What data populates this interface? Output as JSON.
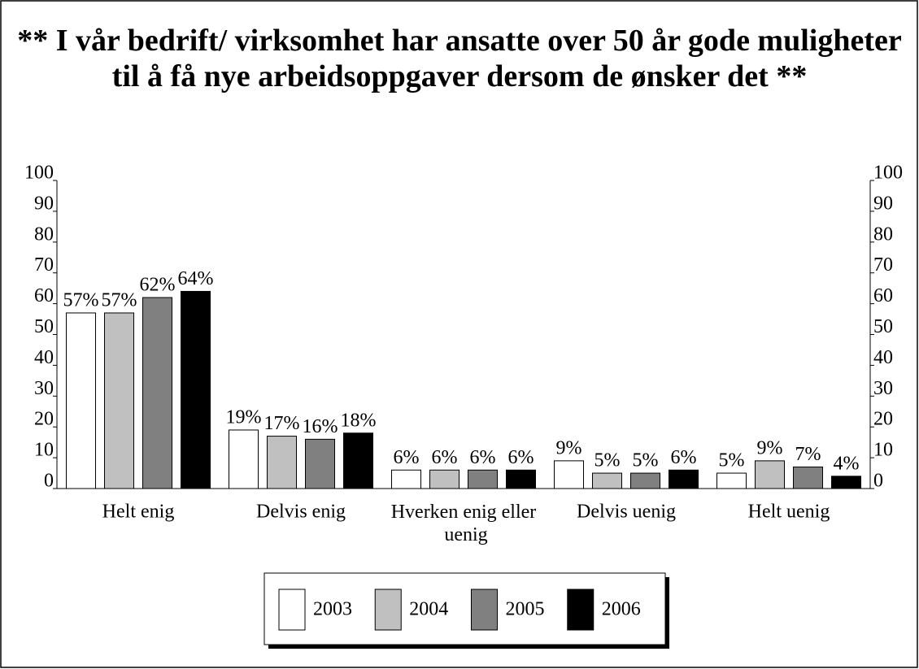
{
  "chart_data": {
    "type": "bar",
    "title": "** I vår bedrift/ virksomhet har ansatte over 50 år gode muligheter til å få nye arbeidsoppgaver dersom de ønsker det **",
    "categories": [
      "Helt enig",
      "Delvis enig",
      "Hverken enig eller uenig",
      "Delvis uenig",
      "Helt uenig"
    ],
    "series": [
      {
        "name": "2003",
        "color": "#ffffff",
        "values": [
          57,
          19,
          6,
          9,
          5
        ],
        "value_labels": [
          "57%",
          "19%",
          "6%",
          "9%",
          "5%"
        ]
      },
      {
        "name": "2004",
        "color": "#c0c0c0",
        "values": [
          57,
          17,
          6,
          5,
          9
        ],
        "value_labels": [
          "57%",
          "17%",
          "6%",
          "5%",
          "9%"
        ]
      },
      {
        "name": "2005",
        "color": "#808080",
        "values": [
          62,
          16,
          6,
          5,
          7
        ],
        "value_labels": [
          "62%",
          "16%",
          "6%",
          "5%",
          "7%"
        ]
      },
      {
        "name": "2006",
        "color": "#000000",
        "values": [
          64,
          18,
          6,
          6,
          4
        ],
        "value_labels": [
          "64%",
          "18%",
          "6%",
          "6%",
          "4%"
        ]
      }
    ],
    "ylim": [
      0,
      100
    ],
    "yticks": [
      0,
      10,
      20,
      30,
      40,
      50,
      60,
      70,
      80,
      90,
      100
    ],
    "y2lim": [
      0,
      100
    ],
    "y2ticks": [
      0,
      10,
      20,
      30,
      40,
      50,
      60,
      70,
      80,
      90,
      100
    ],
    "legend": "bottom",
    "grid": false
  }
}
